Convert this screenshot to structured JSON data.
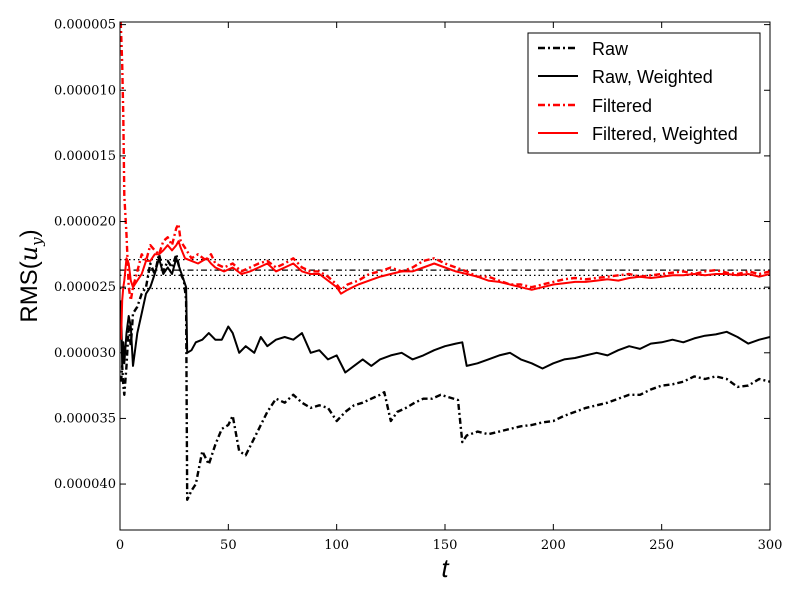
{
  "chart_data": {
    "type": "line",
    "title": "",
    "xlabel": "t",
    "ylabel": "RMS(u_y)",
    "xlim": [
      0,
      300
    ],
    "ylim": [
      4.8e-06,
      4.35e-05
    ],
    "y_inverted": true,
    "x_ticks": [
      0,
      50,
      100,
      150,
      200,
      250,
      300
    ],
    "x_tick_labels": [
      "0",
      "50",
      "100",
      "150",
      "200",
      "250",
      "300"
    ],
    "y_ticks": [
      5e-06,
      1e-05,
      1.5e-05,
      2e-05,
      2.5e-05,
      3e-05,
      3.5e-05,
      4e-05
    ],
    "y_tick_labels": [
      "0.000005",
      "0.000010",
      "0.000015",
      "0.000020",
      "0.000025",
      "0.000030",
      "0.000035",
      "0.000040"
    ],
    "grid": false,
    "legend_position": "top-right",
    "series": [
      {
        "name": "Raw",
        "color": "#000000",
        "linestyle": "dashdot",
        "x": [
          0.5,
          1,
          1.5,
          2,
          3,
          4,
          5,
          6,
          8,
          10,
          12,
          14,
          16,
          18,
          20,
          22,
          24,
          26,
          28,
          29.5,
          30.5,
          31,
          33,
          35,
          38,
          41,
          44,
          47,
          50,
          52,
          55,
          58,
          62,
          65,
          68,
          72,
          76,
          80,
          84,
          88,
          92,
          96,
          100,
          104,
          108,
          112,
          116,
          120,
          122,
          125,
          128,
          132,
          136,
          140,
          144,
          148,
          152,
          156,
          158,
          160,
          165,
          170,
          175,
          180,
          185,
          190,
          195,
          200,
          205,
          210,
          215,
          220,
          225,
          230,
          235,
          240,
          245,
          250,
          255,
          260,
          265,
          270,
          275,
          280,
          285,
          290,
          295,
          300
        ],
        "y": [
          3.22e-05,
          3.1e-05,
          3.25e-05,
          3.32e-05,
          3.1e-05,
          2.8e-05,
          2.95e-05,
          2.7e-05,
          2.65e-05,
          2.55e-05,
          2.5e-05,
          2.32e-05,
          2.4e-05,
          2.25e-05,
          2.38e-05,
          2.3e-05,
          2.35e-05,
          2.25e-05,
          2.4e-05,
          2.45e-05,
          2.6e-05,
          4.12e-05,
          4.05e-05,
          4e-05,
          3.75e-05,
          3.85e-05,
          3.7e-05,
          3.58e-05,
          3.55e-05,
          3.48e-05,
          3.75e-05,
          3.78e-05,
          3.65e-05,
          3.55e-05,
          3.45e-05,
          3.35e-05,
          3.38e-05,
          3.32e-05,
          3.38e-05,
          3.42e-05,
          3.4e-05,
          3.42e-05,
          3.52e-05,
          3.45e-05,
          3.4e-05,
          3.38e-05,
          3.35e-05,
          3.32e-05,
          3.3e-05,
          3.52e-05,
          3.45e-05,
          3.42e-05,
          3.38e-05,
          3.35e-05,
          3.35e-05,
          3.32e-05,
          3.34e-05,
          3.36e-05,
          3.68e-05,
          3.63e-05,
          3.6e-05,
          3.62e-05,
          3.6e-05,
          3.58e-05,
          3.56e-05,
          3.55e-05,
          3.53e-05,
          3.52e-05,
          3.48e-05,
          3.45e-05,
          3.42e-05,
          3.4e-05,
          3.38e-05,
          3.35e-05,
          3.32e-05,
          3.32e-05,
          3.28e-05,
          3.25e-05,
          3.24e-05,
          3.22e-05,
          3.18e-05,
          3.2e-05,
          3.18e-05,
          3.2e-05,
          3.26e-05,
          3.25e-05,
          3.2e-05,
          3.22e-05
        ]
      },
      {
        "name": "Raw, Weighted",
        "color": "#000000",
        "linestyle": "solid",
        "x": [
          0.5,
          1,
          1.5,
          2,
          3,
          4,
          5,
          6,
          8,
          10,
          12,
          14,
          16,
          18,
          20,
          22,
          24,
          26,
          28,
          29.5,
          30.5,
          31,
          33,
          35,
          38,
          41,
          44,
          47,
          50,
          52,
          55,
          58,
          62,
          65,
          68,
          72,
          76,
          80,
          84,
          88,
          92,
          96,
          100,
          104,
          108,
          112,
          116,
          120,
          125,
          130,
          135,
          140,
          145,
          150,
          155,
          158,
          160,
          165,
          170,
          175,
          180,
          185,
          190,
          195,
          200,
          205,
          210,
          215,
          220,
          225,
          230,
          235,
          240,
          245,
          250,
          255,
          260,
          265,
          270,
          275,
          280,
          285,
          290,
          295,
          300
        ],
        "y": [
          2.6e-05,
          3.1e-05,
          2.92e-05,
          3.08e-05,
          2.85e-05,
          2.72e-05,
          2.8e-05,
          3.1e-05,
          2.85e-05,
          2.7e-05,
          2.55e-05,
          2.5e-05,
          2.4e-05,
          2.28e-05,
          2.4e-05,
          2.35e-05,
          2.4e-05,
          2.28e-05,
          2.38e-05,
          2.45e-05,
          2.5e-05,
          3e-05,
          2.98e-05,
          2.92e-05,
          2.9e-05,
          2.85e-05,
          2.9e-05,
          2.9e-05,
          2.8e-05,
          2.85e-05,
          3e-05,
          2.95e-05,
          3e-05,
          2.88e-05,
          2.95e-05,
          2.9e-05,
          2.88e-05,
          2.9e-05,
          2.85e-05,
          3e-05,
          2.98e-05,
          3.05e-05,
          3.02e-05,
          3.15e-05,
          3.1e-05,
          3.05e-05,
          3.1e-05,
          3.05e-05,
          3.02e-05,
          3e-05,
          3.05e-05,
          3.02e-05,
          2.98e-05,
          2.95e-05,
          2.93e-05,
          2.92e-05,
          3.1e-05,
          3.08e-05,
          3.05e-05,
          3.02e-05,
          3e-05,
          3.05e-05,
          3.08e-05,
          3.12e-05,
          3.08e-05,
          3.05e-05,
          3.04e-05,
          3.02e-05,
          3e-05,
          3.02e-05,
          2.98e-05,
          2.95e-05,
          2.97e-05,
          2.93e-05,
          2.92e-05,
          2.9e-05,
          2.92e-05,
          2.89e-05,
          2.87e-05,
          2.86e-05,
          2.84e-05,
          2.88e-05,
          2.93e-05,
          2.9e-05,
          2.88e-05
        ]
      },
      {
        "name": "Filtered",
        "color": "#ff0000",
        "linestyle": "dashdot",
        "x": [
          0.3,
          0.6,
          1,
          1.5,
          2,
          3,
          4,
          5,
          6,
          8,
          10,
          12,
          14,
          16,
          18,
          20,
          22,
          24,
          26,
          27,
          28,
          30,
          33,
          36,
          40,
          42,
          44,
          48,
          52,
          56,
          60,
          64,
          68,
          72,
          76,
          80,
          84,
          88,
          92,
          96,
          100,
          102,
          105,
          110,
          115,
          120,
          125,
          130,
          135,
          140,
          145,
          150,
          155,
          160,
          165,
          170,
          175,
          180,
          185,
          190,
          195,
          200,
          205,
          210,
          215,
          220,
          225,
          230,
          235,
          240,
          245,
          250,
          255,
          260,
          265,
          270,
          275,
          280,
          285,
          290,
          295,
          300
        ],
        "y": [
          4.8e-06,
          6e-06,
          8e-06,
          1.2e-05,
          1.8e-05,
          2.1e-05,
          2.5e-05,
          2.6e-05,
          2.5e-05,
          2.38e-05,
          2.25e-05,
          2.3e-05,
          2.18e-05,
          2.22e-05,
          2.25e-05,
          2.15e-05,
          2.12e-05,
          2.18e-05,
          2.05e-05,
          2.02e-05,
          2.15e-05,
          2.2e-05,
          2.28e-05,
          2.25e-05,
          2.3e-05,
          2.25e-05,
          2.32e-05,
          2.35e-05,
          2.32e-05,
          2.38e-05,
          2.35e-05,
          2.32e-05,
          2.3e-05,
          2.35e-05,
          2.32e-05,
          2.28e-05,
          2.35e-05,
          2.38e-05,
          2.38e-05,
          2.42e-05,
          2.48e-05,
          2.52e-05,
          2.48e-05,
          2.45e-05,
          2.4e-05,
          2.38e-05,
          2.35e-05,
          2.38e-05,
          2.35e-05,
          2.3e-05,
          2.28e-05,
          2.32e-05,
          2.35e-05,
          2.38e-05,
          2.42e-05,
          2.42e-05,
          2.45e-05,
          2.48e-05,
          2.48e-05,
          2.5e-05,
          2.48e-05,
          2.46e-05,
          2.44e-05,
          2.43e-05,
          2.44e-05,
          2.43e-05,
          2.42e-05,
          2.41e-05,
          2.4e-05,
          2.42e-05,
          2.41e-05,
          2.4e-05,
          2.39e-05,
          2.38e-05,
          2.4e-05,
          2.38e-05,
          2.37e-05,
          2.39e-05,
          2.4e-05,
          2.38e-05,
          2.4e-05,
          2.38e-05
        ]
      },
      {
        "name": "Filtered, Weighted",
        "color": "#ff0000",
        "linestyle": "solid",
        "x": [
          0.5,
          1,
          1.5,
          2,
          3,
          4,
          5,
          6,
          8,
          10,
          12,
          14,
          16,
          18,
          20,
          22,
          24,
          26,
          27,
          28,
          30,
          33,
          36,
          40,
          42,
          44,
          48,
          52,
          56,
          60,
          64,
          68,
          72,
          76,
          80,
          84,
          88,
          92,
          96,
          100,
          102,
          105,
          110,
          115,
          120,
          125,
          130,
          135,
          140,
          145,
          150,
          155,
          160,
          165,
          170,
          175,
          180,
          185,
          190,
          195,
          200,
          205,
          210,
          215,
          220,
          225,
          230,
          235,
          240,
          245,
          250,
          255,
          260,
          265,
          270,
          275,
          280,
          285,
          290,
          295,
          300
        ],
        "y": [
          2.9e-05,
          2.6e-05,
          2.5e-05,
          2.45e-05,
          2.28e-05,
          2.32e-05,
          2.45e-05,
          2.5e-05,
          2.45e-05,
          2.4e-05,
          2.3e-05,
          2.3e-05,
          2.25e-05,
          2.25e-05,
          2.22e-05,
          2.18e-05,
          2.22e-05,
          2.18e-05,
          2.15e-05,
          2.2e-05,
          2.28e-05,
          2.3e-05,
          2.32e-05,
          2.28e-05,
          2.32e-05,
          2.35e-05,
          2.38e-05,
          2.35e-05,
          2.4e-05,
          2.38e-05,
          2.35e-05,
          2.32e-05,
          2.38e-05,
          2.35e-05,
          2.32e-05,
          2.38e-05,
          2.4e-05,
          2.4e-05,
          2.45e-05,
          2.5e-05,
          2.55e-05,
          2.52e-05,
          2.48e-05,
          2.45e-05,
          2.42e-05,
          2.4e-05,
          2.38e-05,
          2.38e-05,
          2.35e-05,
          2.32e-05,
          2.35e-05,
          2.38e-05,
          2.4e-05,
          2.42e-05,
          2.45e-05,
          2.46e-05,
          2.48e-05,
          2.5e-05,
          2.52e-05,
          2.5e-05,
          2.48e-05,
          2.47e-05,
          2.46e-05,
          2.46e-05,
          2.45e-05,
          2.44e-05,
          2.45e-05,
          2.43e-05,
          2.42e-05,
          2.43e-05,
          2.42e-05,
          2.41e-05,
          2.41e-05,
          2.4e-05,
          2.41e-05,
          2.4e-05,
          2.4e-05,
          2.41e-05,
          2.4e-05,
          2.42e-05,
          2.4e-05
        ]
      }
    ],
    "reference_lines": [
      {
        "y": 2.29e-05,
        "color": "#000000",
        "style": "dotted"
      },
      {
        "y": 2.37e-05,
        "color": "#000000",
        "style": "dashdot"
      },
      {
        "y": 2.41e-05,
        "color": "#000000",
        "style": "dotted"
      },
      {
        "y": 2.51e-05,
        "color": "#000000",
        "style": "dotted"
      }
    ],
    "legend": [
      {
        "label": "Raw",
        "color": "#000000",
        "linestyle": "dashdot"
      },
      {
        "label": "Raw, Weighted",
        "color": "#000000",
        "linestyle": "solid"
      },
      {
        "label": "Filtered",
        "color": "#ff0000",
        "linestyle": "dashdot"
      },
      {
        "label": "Filtered, Weighted",
        "color": "#ff0000",
        "linestyle": "solid"
      }
    ]
  }
}
